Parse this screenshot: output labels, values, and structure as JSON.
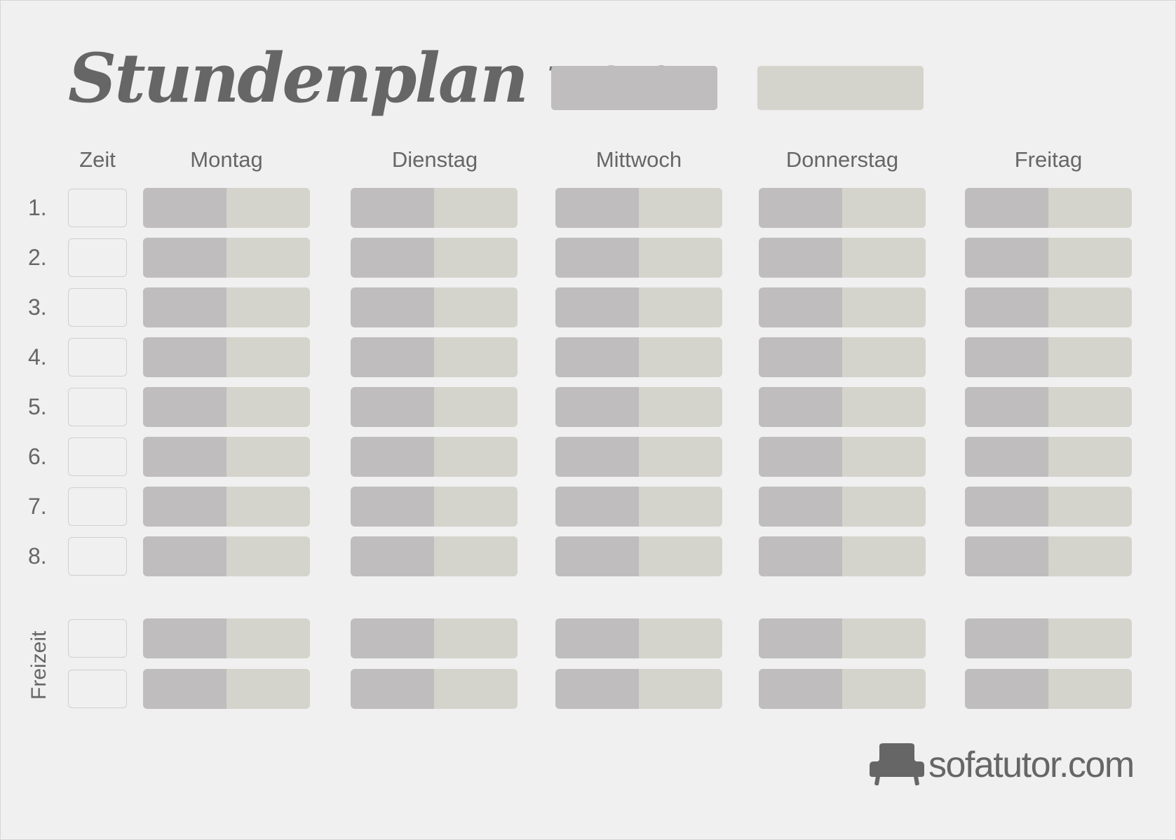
{
  "title": "Stundenplan von:",
  "headers": {
    "time": "Zeit",
    "days": [
      "Montag",
      "Dienstag",
      "Mittwoch",
      "Donnerstag",
      "Freitag"
    ]
  },
  "rows": [
    "1.",
    "2.",
    "3.",
    "4.",
    "5.",
    "6.",
    "7.",
    "8."
  ],
  "freetime_label": "Freizeit",
  "freetime_rows": 2,
  "logo": {
    "text": "sofatutor.com",
    "icon": "sofa-icon"
  },
  "colors": {
    "background": "#f0f0f0",
    "text": "#666666",
    "cell_dark": "#bfbdbd",
    "cell_light": "#d4d4cd",
    "time_box_border": "#d0d0d0"
  }
}
